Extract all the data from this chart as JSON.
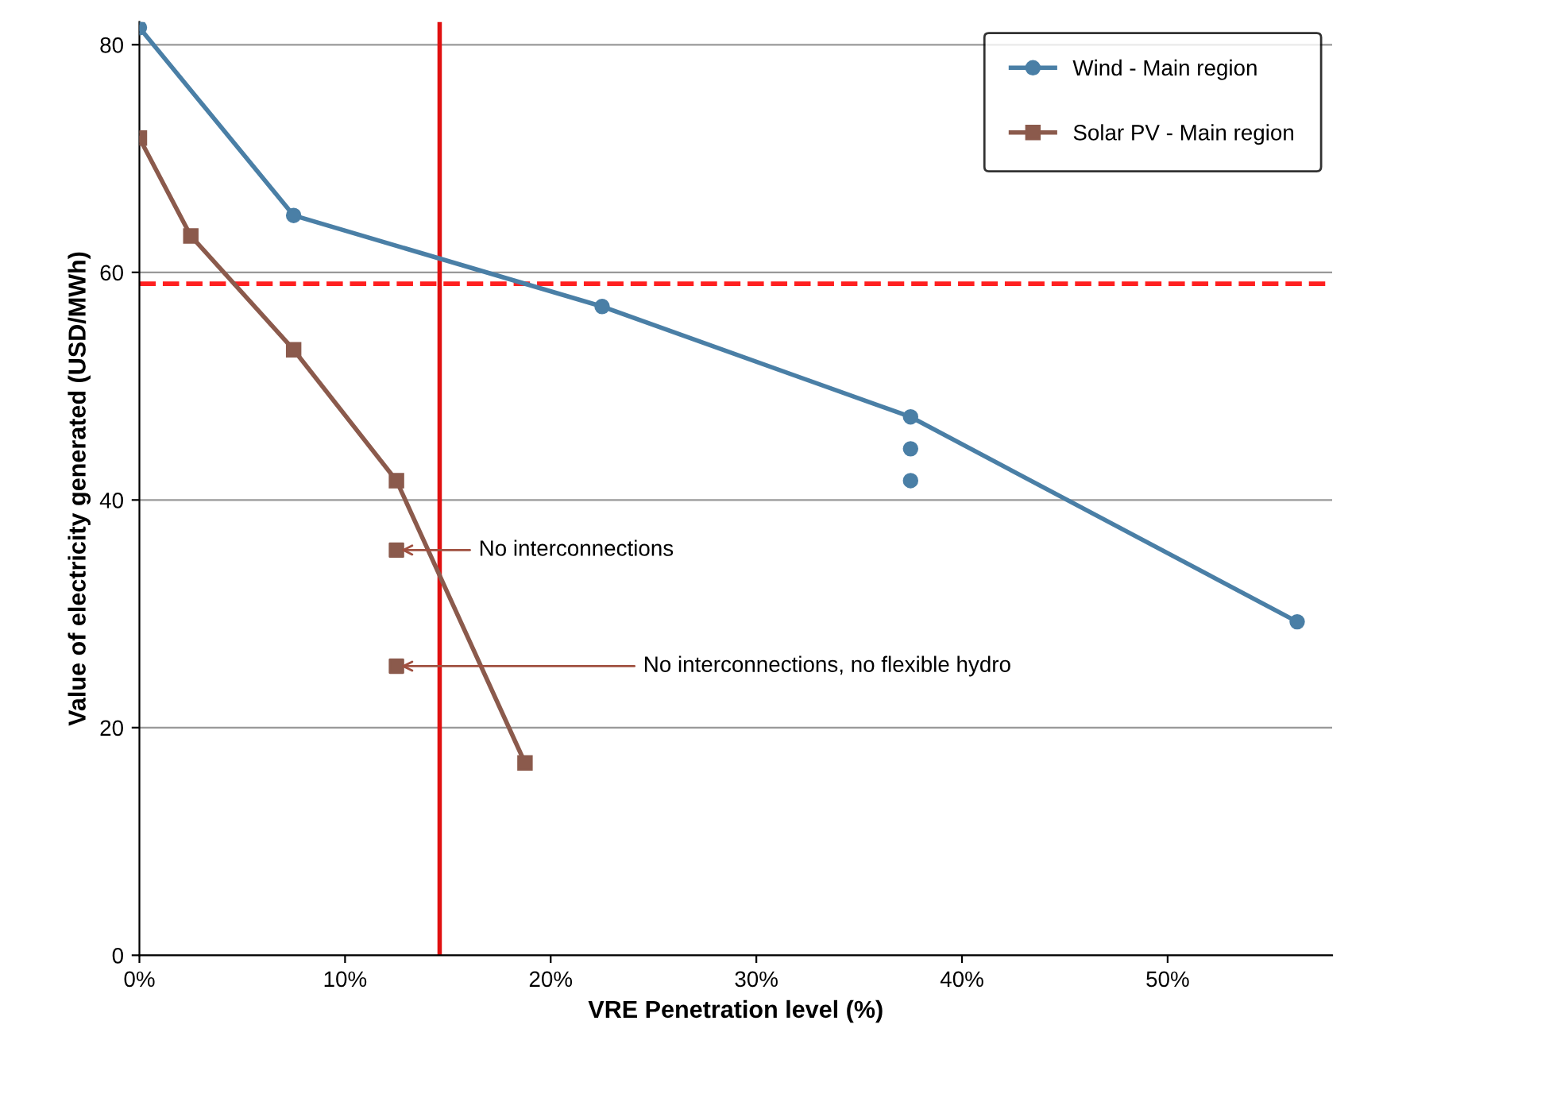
{
  "chart_data": {
    "type": "line",
    "xlabel": "VRE Penetration level (%)",
    "ylabel": "Value of electricity generated (USD/MWh)",
    "xlim": [
      0,
      58
    ],
    "xticks": [
      {
        "value": 0,
        "label": "0%"
      },
      {
        "value": 10,
        "label": "10%"
      },
      {
        "value": 20,
        "label": "20%"
      },
      {
        "value": 30,
        "label": "30%"
      },
      {
        "value": 40,
        "label": "40%"
      },
      {
        "value": 50,
        "label": "50%"
      }
    ],
    "ylim": [
      0,
      82
    ],
    "yticks": [
      0,
      20,
      40,
      60,
      80
    ],
    "grid": "y",
    "legend": "top right",
    "series": [
      {
        "name": "Wind - Main region",
        "color": "#4a7fa6",
        "marker": "circle",
        "x": [
          0,
          7.5,
          22.5,
          37.5,
          56.3
        ],
        "values": [
          81.5,
          65,
          57,
          47.3,
          29.3
        ]
      },
      {
        "name": "Solar PV - Main region",
        "color": "#8b5a4c",
        "marker": "square",
        "x": [
          0,
          2.5,
          7.5,
          12.5,
          18.75
        ],
        "values": [
          71.8,
          63.2,
          53.2,
          41.7,
          16.9
        ]
      },
      {
        "type": "scatter",
        "color": "#4a7fa6",
        "marker": "circle",
        "x": [
          37.5,
          37.5
        ],
        "values": [
          44.5,
          41.7
        ]
      },
      {
        "type": "scatter",
        "color": "#8b5a4c",
        "marker": "square",
        "x": [
          12.5,
          12.5
        ],
        "values": [
          35.6,
          25.4
        ]
      }
    ],
    "ref_lines": [
      {
        "axis": "y",
        "value": 59,
        "color": "#ff2020",
        "line_style": "dashed"
      },
      {
        "axis": "x",
        "value": 14.6,
        "color": "#e01010",
        "line_style": "solid"
      }
    ],
    "annotations": [
      {
        "text": "No interconnections",
        "x": 12.5,
        "y": 35.6
      },
      {
        "text": "No interconnections, no flexible hydro",
        "x": 12.5,
        "y": 25.4
      }
    ]
  }
}
